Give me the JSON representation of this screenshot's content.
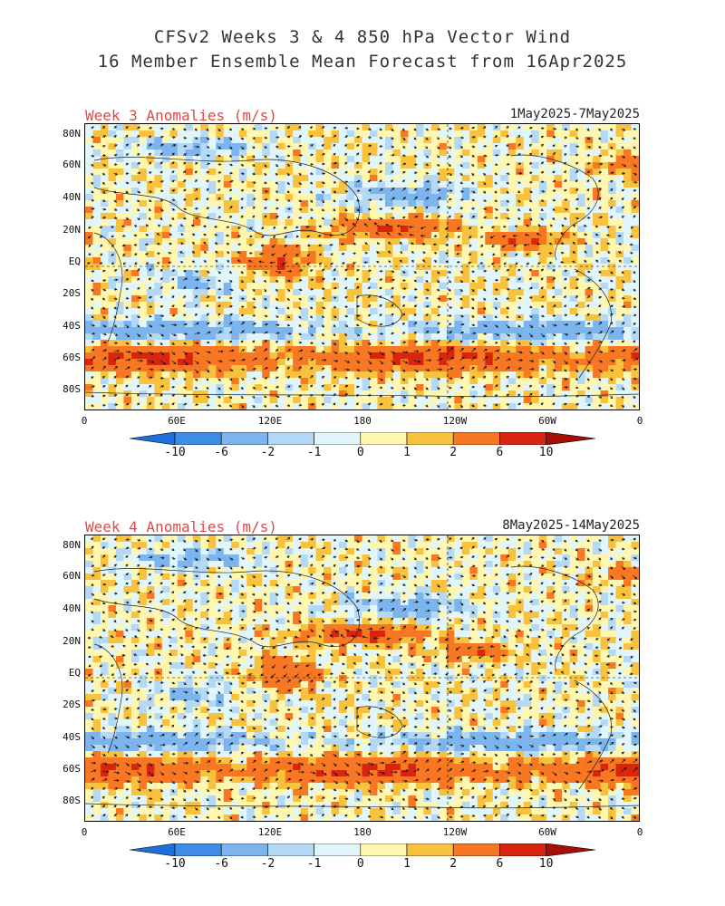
{
  "title_line1": "CFSv2 Weeks 3 & 4 850 hPa Vector Wind",
  "title_line2": "16 Member Ensemble Mean Forecast from 16Apr2025",
  "panels": [
    {
      "label": "Week 3 Anomalies (m/s)",
      "dates": "1May2025-7May2025"
    },
    {
      "label": "Week 4 Anomalies (m/s)",
      "dates": "8May2025-14May2025"
    }
  ],
  "lat_labels": [
    "80N",
    "60N",
    "40N",
    "20N",
    "EQ",
    "20S",
    "40S",
    "60S",
    "80S"
  ],
  "lon_labels": [
    "0",
    "60E",
    "120E",
    "180",
    "120W",
    "60W",
    "0"
  ],
  "colorbar": {
    "labels": [
      "-10",
      "-6",
      "-2",
      "-1",
      "0",
      "1",
      "2",
      "6",
      "10"
    ],
    "colors": [
      "#1e6fd9",
      "#3d8ce6",
      "#7cb4ee",
      "#b3d9f7",
      "#e0f6fb",
      "#fff6b0",
      "#f9c23e",
      "#f77722",
      "#d9250f",
      "#a60f08"
    ]
  },
  "colors": {
    "title": "#333333",
    "panel_label": "#e04848"
  }
}
